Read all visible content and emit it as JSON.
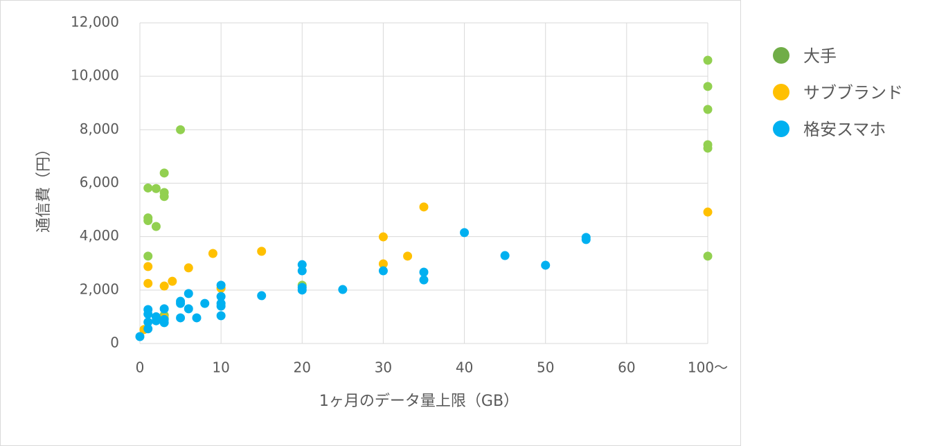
{
  "chart_data": {
    "type": "scatter",
    "x_label": "1ヶ月のデータ量上限（GB）",
    "y_label": "通信費（円）",
    "xlim": [
      0,
      70
    ],
    "xticks": [
      0,
      10,
      20,
      30,
      40,
      50,
      60,
      {
        "value": 70,
        "label": "100～"
      }
    ],
    "ylim": [
      0,
      12000
    ],
    "yticks": [
      0,
      {
        "value": 2000,
        "label": "2,000"
      },
      {
        "value": 4000,
        "label": "4,000"
      },
      {
        "value": 6000,
        "label": "6,000"
      },
      {
        "value": 8000,
        "label": "8,000"
      },
      {
        "value": 10000,
        "label": "10,000"
      },
      {
        "value": 12000,
        "label": "12,000"
      }
    ],
    "grid": true,
    "legend": "right",
    "series": [
      {
        "name": "大手",
        "color": "#92d050",
        "legend_color": "#70ad47",
        "x": [
          5,
          3,
          1,
          2,
          3,
          3,
          1,
          1,
          2,
          1,
          3,
          20,
          70,
          70,
          70,
          70,
          70,
          70
        ],
        "values": [
          8000,
          6380,
          5820,
          5800,
          5650,
          5500,
          4700,
          4600,
          4380,
          3270,
          1060,
          2180,
          10600,
          9620,
          8760,
          7440,
          7310,
          3270
        ]
      },
      {
        "name": "サブブランド",
        "color": "#ffc000",
        "legend_color": "#ffc000",
        "x": [
          0.5,
          1,
          1,
          3,
          4,
          6,
          9,
          10,
          15,
          30,
          30,
          33,
          35,
          70,
          3
        ],
        "values": [
          520,
          2880,
          2250,
          2150,
          2330,
          2830,
          3370,
          2070,
          3450,
          3990,
          2980,
          3270,
          5110,
          4920,
          950
        ]
      },
      {
        "name": "格安スマホ",
        "color": "#00b0f0",
        "legend_color": "#00b0f0",
        "x": [
          0,
          1,
          1,
          1,
          1,
          2,
          2,
          3,
          3,
          3,
          5,
          5,
          5,
          6,
          6,
          7,
          8,
          10,
          10,
          10,
          10,
          10,
          15,
          20,
          20,
          20,
          20,
          25,
          30,
          35,
          35,
          40,
          45,
          50,
          55,
          55
        ],
        "values": [
          260,
          1270,
          1100,
          800,
          550,
          1000,
          850,
          1300,
          780,
          900,
          1580,
          1500,
          960,
          1870,
          1300,
          960,
          1500,
          2180,
          1760,
          1500,
          1400,
          1040,
          1790,
          2950,
          2720,
          2000,
          2100,
          2020,
          2720,
          2670,
          2380,
          4150,
          3290,
          2930,
          3970,
          3890
        ]
      }
    ]
  }
}
